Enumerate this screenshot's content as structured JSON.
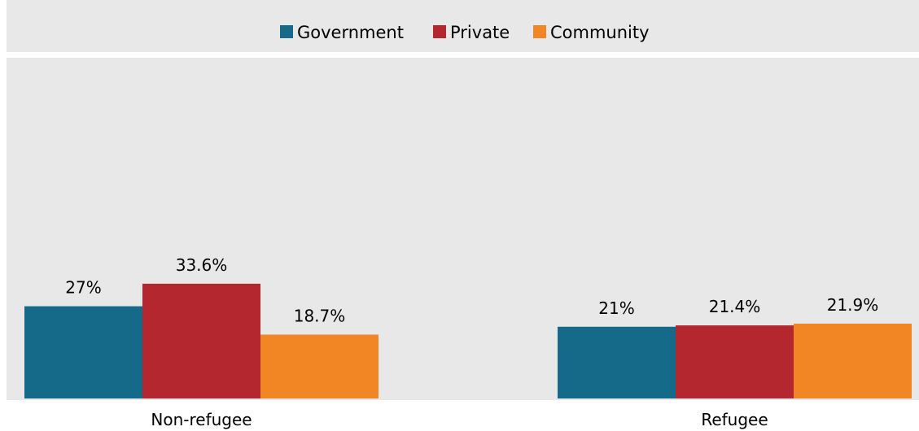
{
  "chart_data": {
    "type": "bar",
    "title": "",
    "xlabel": "",
    "ylabel": "",
    "categories": [
      "Non-refugee",
      "Refugee"
    ],
    "series": [
      {
        "name": "Government",
        "color": "#156A8A",
        "values": [
          27,
          21
        ],
        "labels": [
          "27%",
          "21%"
        ]
      },
      {
        "name": "Private",
        "color": "#B5272E",
        "values": [
          33.6,
          21.4
        ],
        "labels": [
          "33.6%",
          "21.4%"
        ]
      },
      {
        "name": "Community",
        "color": "#F28624",
        "values": [
          18.7,
          21.9
        ],
        "labels": [
          "18.7%",
          "21.9%"
        ]
      }
    ],
    "ylim": [
      0,
      100
    ],
    "unit": "%",
    "legend_position": "top",
    "grid": false,
    "background_color": "#E8E8E8"
  }
}
